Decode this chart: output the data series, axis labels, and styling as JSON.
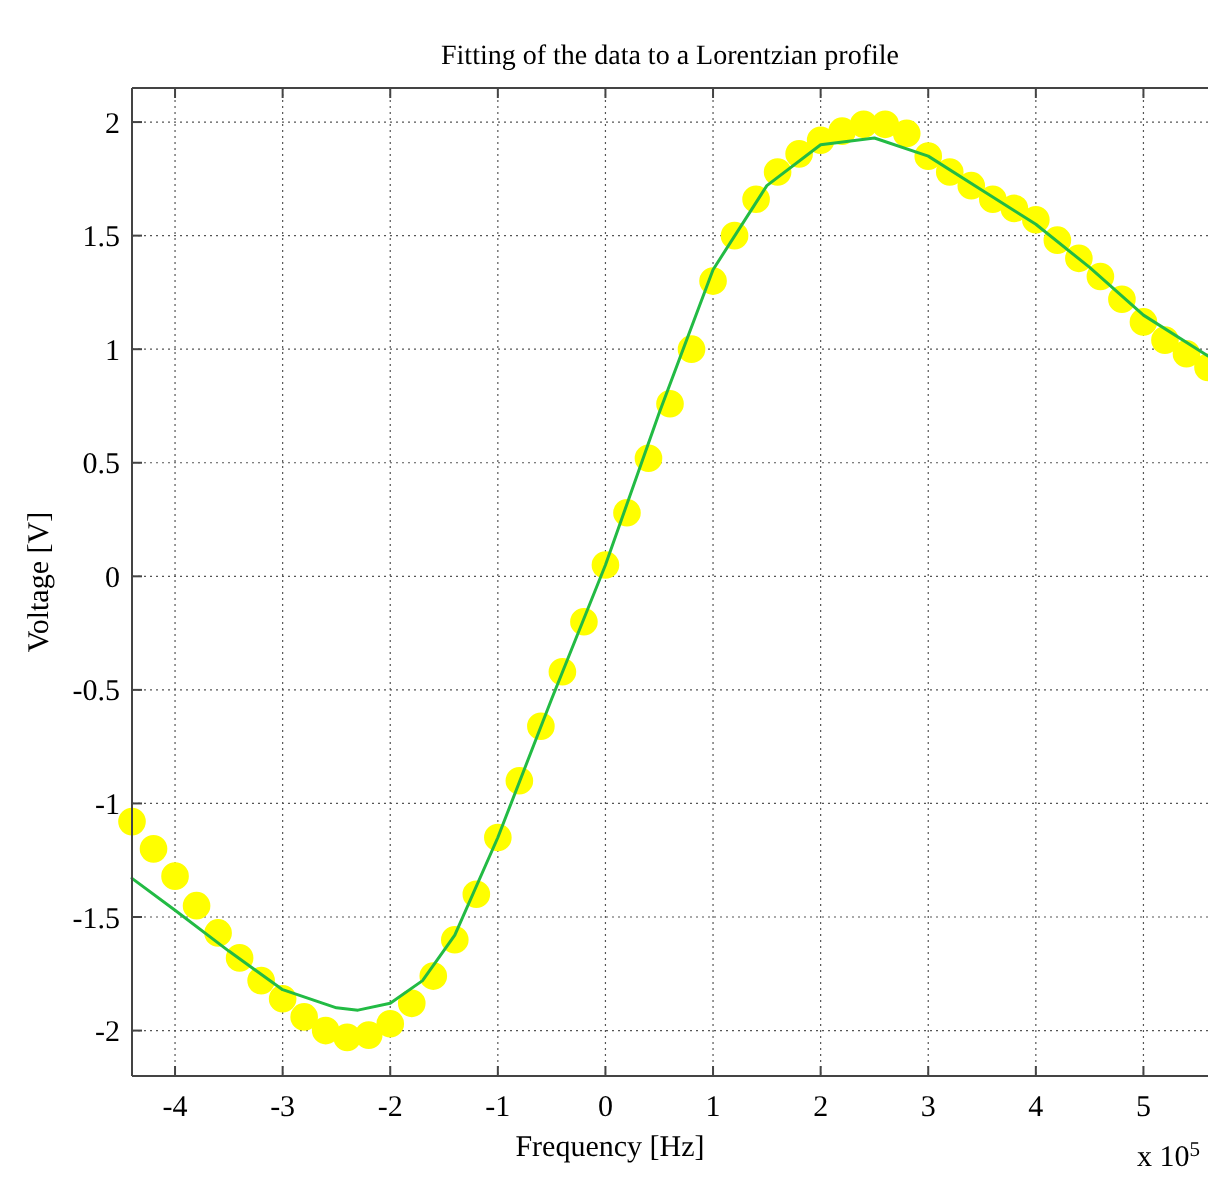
{
  "chart_data": {
    "type": "scatter",
    "title": "Fitting of the data to a Lorentzian profile",
    "xlabel": "Frequency [Hz]",
    "ylabel": "Voltage [V]",
    "annotations": [
      "x 10$^{5}$"
    ],
    "xlim": [
      -4.4,
      5.6
    ],
    "xticks": [
      -4,
      -3,
      -2,
      -1,
      0,
      1,
      2,
      3,
      4,
      5
    ],
    "ylim": [
      -2.2,
      2.15
    ],
    "yticks": [
      -2,
      -1.5,
      -1,
      -0.5,
      0,
      0.5,
      1,
      1.5,
      2
    ],
    "grid": true,
    "marker": "circle",
    "series": [
      {
        "color": "#ffff00",
        "x": [
          -4.4,
          -4.2,
          -4,
          -3.8,
          -3.6,
          -3.4,
          -3.2,
          -3,
          -2.8,
          -2.6,
          -2.4,
          -2.2,
          -2,
          -1.8,
          -1.6,
          -1.4,
          -1.2,
          -1,
          -0.8,
          -0.6,
          -0.4,
          -0.2,
          0,
          0.2,
          0.4,
          0.6,
          0.8,
          1,
          1.2,
          1.4,
          1.6,
          1.8,
          2,
          2.2,
          2.4,
          2.6,
          2.8,
          3,
          3.2,
          3.4,
          3.6,
          3.8,
          4,
          4.2,
          4.4,
          4.6,
          4.8,
          5,
          5.2,
          5.4,
          5.6
        ],
        "values": [
          -1.08,
          -1.2,
          -1.32,
          -1.45,
          -1.57,
          -1.68,
          -1.78,
          -1.86,
          -1.94,
          -2.0,
          -2.03,
          -2.02,
          -1.97,
          -1.88,
          -1.76,
          -1.6,
          -1.4,
          -1.15,
          -0.9,
          -0.66,
          -0.42,
          -0.2,
          0.05,
          0.28,
          0.52,
          0.76,
          1.0,
          1.3,
          1.5,
          1.66,
          1.78,
          1.86,
          1.92,
          1.96,
          1.99,
          1.99,
          1.95,
          1.85,
          1.78,
          1.72,
          1.66,
          1.62,
          1.57,
          1.48,
          1.4,
          1.32,
          1.22,
          1.12,
          1.04,
          0.98,
          0.92
        ]
      },
      {
        "type": "line",
        "color": "#22bb44",
        "line_style": "solid",
        "marker": "none",
        "x": [
          -4.4,
          -4,
          -3.5,
          -3,
          -2.5,
          -2.3,
          -2,
          -1.7,
          -1.4,
          -1,
          -0.5,
          0,
          0.5,
          1,
          1.5,
          2,
          2.5,
          3,
          3.5,
          4,
          4.5,
          5,
          5.6
        ],
        "values": [
          -1.33,
          -1.47,
          -1.65,
          -1.82,
          -1.9,
          -1.91,
          -1.88,
          -1.78,
          -1.58,
          -1.15,
          -0.54,
          0.05,
          0.72,
          1.35,
          1.72,
          1.9,
          1.93,
          1.85,
          1.7,
          1.55,
          1.36,
          1.15,
          0.97
        ]
      }
    ]
  }
}
